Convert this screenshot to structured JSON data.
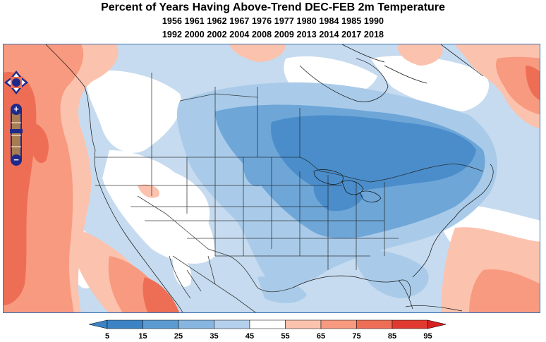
{
  "title": "Percent of Years Having Above-Trend DEC-FEB 2m Temperature",
  "years_line1": "1956 1961 1962 1967 1976 1977 1980 1984 1985 1990",
  "years_line2": "1992 2000 2002 2004 2008 2009 2013 2014 2017 2018",
  "controls": {
    "pan_icon": "pan-arrows-icon",
    "zoom_in_label": "+",
    "zoom_out_label": "−"
  },
  "colorbar": {
    "ticks": [
      "5",
      "15",
      "25",
      "35",
      "45",
      "55",
      "65",
      "75",
      "85",
      "95"
    ],
    "colors": [
      "#3b83c4",
      "#5b9bd1",
      "#86b5df",
      "#b4d0ec",
      "#ffffff",
      "#fbc2ae",
      "#f89a7f",
      "#ee6e55",
      "#e03a30"
    ],
    "under_color": "#3b83c4",
    "over_color": "#d6201f"
  },
  "map_colors": {
    "deep_blue": "#4a8dca",
    "mid_blue": "#6ea6d8",
    "light_blue": "#a9cbe9",
    "pale_blue": "#c6dbef",
    "white": "#ffffff",
    "light_red": "#fbc2ae",
    "mid_red": "#f89a7f",
    "deep_red": "#ee6e55",
    "border": "#3d72b0"
  }
}
